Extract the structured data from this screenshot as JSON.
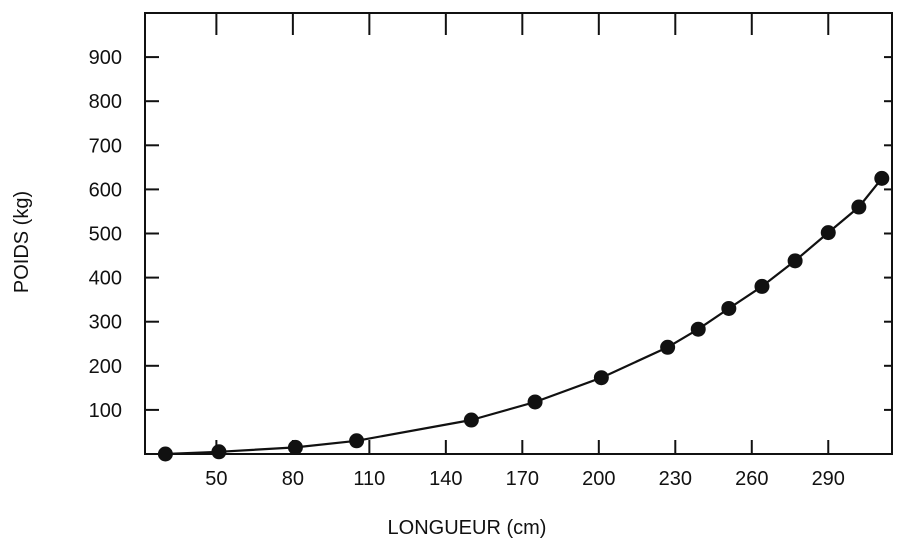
{
  "chart_data": {
    "type": "line",
    "title": "",
    "xlabel": "LONGUEUR (cm)",
    "ylabel": "POIDS (kg)",
    "xlim": [
      22,
      315
    ],
    "ylim": [
      0,
      1000
    ],
    "x_ticks": [
      50,
      80,
      110,
      140,
      170,
      200,
      230,
      260,
      290
    ],
    "y_ticks": [
      100,
      200,
      300,
      400,
      500,
      600,
      700,
      800,
      900
    ],
    "grid": false,
    "legend": "none",
    "line_color": "#111111",
    "marker_color": "#111111",
    "series": [
      {
        "x": [
          30,
          51,
          81,
          105,
          150,
          175,
          201,
          227,
          239,
          251,
          264,
          277,
          290,
          302,
          311
        ],
        "y": [
          0,
          5,
          15,
          30,
          77,
          118,
          173,
          242,
          283,
          330,
          380,
          438,
          502,
          560,
          625
        ]
      }
    ]
  }
}
